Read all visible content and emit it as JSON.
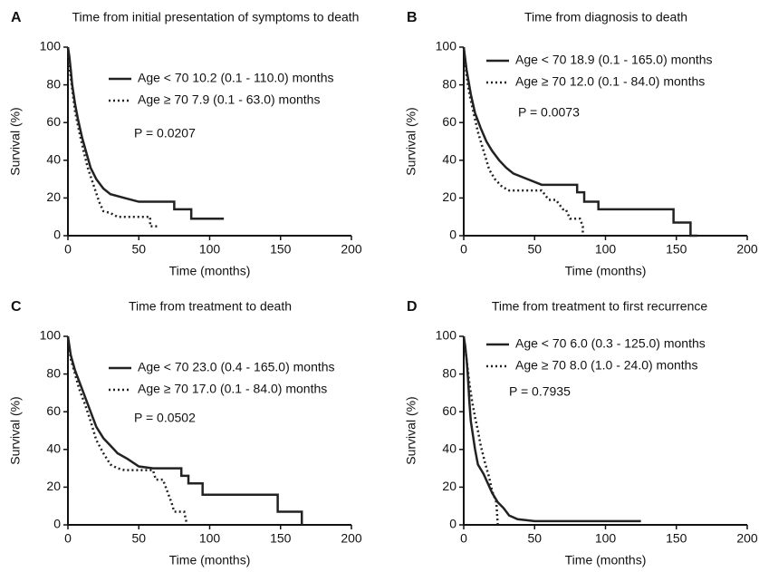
{
  "chart_data": [
    {
      "type": "line",
      "label": "A",
      "title": "Time from initial presentation of symptoms to death",
      "x_label": "Time (months)",
      "y_label": "Survival (%)",
      "annotation": "P = 0.0207",
      "xlim": [
        0,
        200
      ],
      "xticks": [
        0,
        50,
        100,
        150,
        200
      ],
      "ylim": [
        0,
        100
      ],
      "yticks": [
        0,
        20,
        40,
        60,
        80,
        100
      ],
      "series": [
        {
          "name": "Age < 70 10.2 (0.1 - 110.0) months",
          "color": "#222222",
          "style": "solid",
          "x": [
            0,
            1,
            2,
            3,
            5,
            7,
            10,
            13,
            16,
            20,
            25,
            30,
            40,
            50,
            75,
            75,
            87,
            87,
            110
          ],
          "values": [
            100,
            95,
            88,
            80,
            70,
            62,
            52,
            44,
            36,
            30,
            25,
            22,
            20,
            18,
            18,
            14,
            14,
            9,
            9
          ]
        },
        {
          "name": "Age ≥ 70 7.9 (0.1 - 63.0) months",
          "color": "#222222",
          "style": "dotted",
          "x": [
            0,
            1,
            3,
            5,
            8,
            11,
            14,
            18,
            22,
            25,
            30,
            35,
            58,
            58,
            63
          ],
          "values": [
            100,
            90,
            78,
            66,
            55,
            45,
            36,
            27,
            18,
            13,
            12,
            10,
            10,
            5,
            5
          ]
        }
      ]
    },
    {
      "type": "line",
      "label": "B",
      "title": "Time from diagnosis to death",
      "x_label": "Time (months)",
      "y_label": "Survival (%)",
      "annotation": "P = 0.0073",
      "xlim": [
        0,
        200
      ],
      "xticks": [
        0,
        50,
        100,
        150,
        200
      ],
      "ylim": [
        0,
        100
      ],
      "yticks": [
        0,
        20,
        40,
        60,
        80,
        100
      ],
      "series": [
        {
          "name": "Age < 70 18.9 (0.1 - 165.0) months",
          "color": "#222222",
          "style": "solid",
          "x": [
            0,
            2,
            5,
            8,
            12,
            16,
            20,
            25,
            30,
            35,
            45,
            55,
            80,
            80,
            85,
            85,
            95,
            95,
            148,
            148,
            160,
            160,
            165
          ],
          "values": [
            100,
            88,
            75,
            65,
            57,
            50,
            45,
            40,
            36,
            33,
            30,
            27,
            27,
            23,
            23,
            18,
            18,
            14,
            14,
            7,
            7,
            0,
            0
          ]
        },
        {
          "name": "Age ≥ 70 12.0 (0.1 - 84.0) months",
          "color": "#222222",
          "style": "dotted",
          "x": [
            0,
            2,
            4,
            7,
            10,
            14,
            18,
            22,
            27,
            32,
            55,
            60,
            65,
            70,
            72,
            75,
            82,
            84,
            84
          ],
          "values": [
            100,
            85,
            75,
            65,
            55,
            45,
            35,
            30,
            26,
            24,
            24,
            19,
            19,
            14,
            14,
            9,
            9,
            5,
            0
          ]
        }
      ]
    },
    {
      "type": "line",
      "label": "C",
      "title": "Time from treatment to death",
      "x_label": "Time (months)",
      "y_label": "Survival (%)",
      "annotation": "P = 0.0502",
      "xlim": [
        0,
        200
      ],
      "xticks": [
        0,
        50,
        100,
        150,
        200
      ],
      "ylim": [
        0,
        100
      ],
      "yticks": [
        0,
        20,
        40,
        60,
        80,
        100
      ],
      "series": [
        {
          "name": "Age < 70 23.0 (0.4 - 165.0) months",
          "color": "#222222",
          "style": "solid",
          "x": [
            0,
            2,
            5,
            8,
            12,
            16,
            20,
            25,
            30,
            35,
            42,
            50,
            60,
            80,
            80,
            85,
            85,
            95,
            95,
            148,
            148,
            165,
            165
          ],
          "values": [
            100,
            90,
            82,
            76,
            68,
            60,
            52,
            46,
            42,
            38,
            35,
            31,
            30,
            30,
            26,
            26,
            22,
            22,
            16,
            16,
            7,
            7,
            0
          ]
        },
        {
          "name": "Age ≥ 70 17.0 (0.1 - 84.0) months",
          "color": "#222222",
          "style": "dotted",
          "x": [
            0,
            2,
            5,
            8,
            12,
            16,
            20,
            25,
            30,
            35,
            40,
            60,
            62,
            67,
            70,
            73,
            75,
            82,
            84
          ],
          "values": [
            100,
            88,
            80,
            72,
            64,
            55,
            45,
            38,
            32,
            30,
            29,
            29,
            24,
            24,
            18,
            12,
            7,
            7,
            0
          ]
        }
      ]
    },
    {
      "type": "line",
      "label": "D",
      "title": "Time from treatment to first recurrence",
      "x_label": "Time (months)",
      "y_label": "Survival (%)",
      "annotation": "P = 0.7935",
      "xlim": [
        0,
        200
      ],
      "xticks": [
        0,
        50,
        100,
        150,
        200
      ],
      "ylim": [
        0,
        100
      ],
      "yticks": [
        0,
        20,
        40,
        60,
        80,
        100
      ],
      "series": [
        {
          "name": "Age < 70 6.0 (0.3 - 125.0) months",
          "color": "#222222",
          "style": "solid",
          "x": [
            0,
            1,
            2,
            3,
            4,
            5,
            6,
            7,
            8,
            10,
            14,
            17,
            20,
            24,
            28,
            32,
            38,
            50,
            125
          ],
          "values": [
            100,
            95,
            88,
            78,
            65,
            55,
            50,
            45,
            40,
            32,
            27,
            22,
            17,
            12,
            9,
            5,
            3,
            2,
            2
          ]
        },
        {
          "name": "Age ≥ 70 8.0 (1.0 - 24.0) months",
          "color": "#222222",
          "style": "dotted",
          "x": [
            0,
            2,
            4,
            6,
            8,
            10,
            12,
            15,
            18,
            20,
            23,
            24
          ],
          "values": [
            100,
            88,
            75,
            65,
            57,
            50,
            42,
            33,
            25,
            18,
            12,
            0
          ]
        }
      ]
    }
  ]
}
